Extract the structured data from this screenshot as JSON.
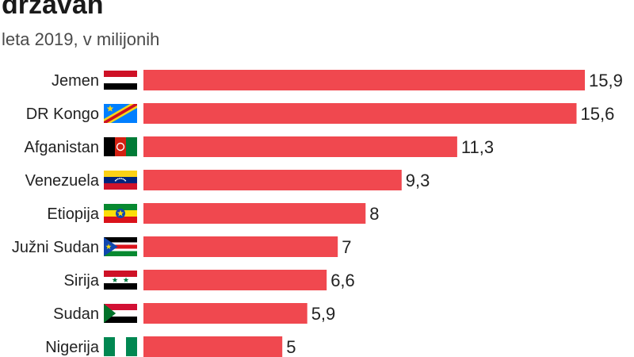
{
  "header": {
    "title": "državah",
    "subtitle": "leta 2019, v milijonih"
  },
  "chart_data": {
    "type": "bar",
    "orientation": "horizontal",
    "bar_color": "#f0484f",
    "categories": [
      "Jemen",
      "DR Kongo",
      "Afganistan",
      "Venezuela",
      "Etiopija",
      "Južni Sudan",
      "Sirija",
      "Sudan",
      "Nigerija"
    ],
    "values": [
      15.9,
      15.6,
      11.3,
      9.3,
      8,
      7,
      6.6,
      5.9,
      5
    ],
    "value_labels": [
      "15,9",
      "15,6",
      "11,3",
      "9,3",
      "8",
      "7",
      "6,6",
      "5,9",
      "5"
    ],
    "flags": [
      "flag-yemen-icon",
      "flag-dr-congo-icon",
      "flag-afghanistan-icon",
      "flag-venezuela-icon",
      "flag-ethiopia-icon",
      "flag-south-sudan-icon",
      "flag-syria-icon",
      "flag-sudan-icon",
      "flag-nigeria-icon"
    ],
    "xlim": [
      0,
      15.9
    ],
    "grid": false,
    "legend": "none"
  }
}
